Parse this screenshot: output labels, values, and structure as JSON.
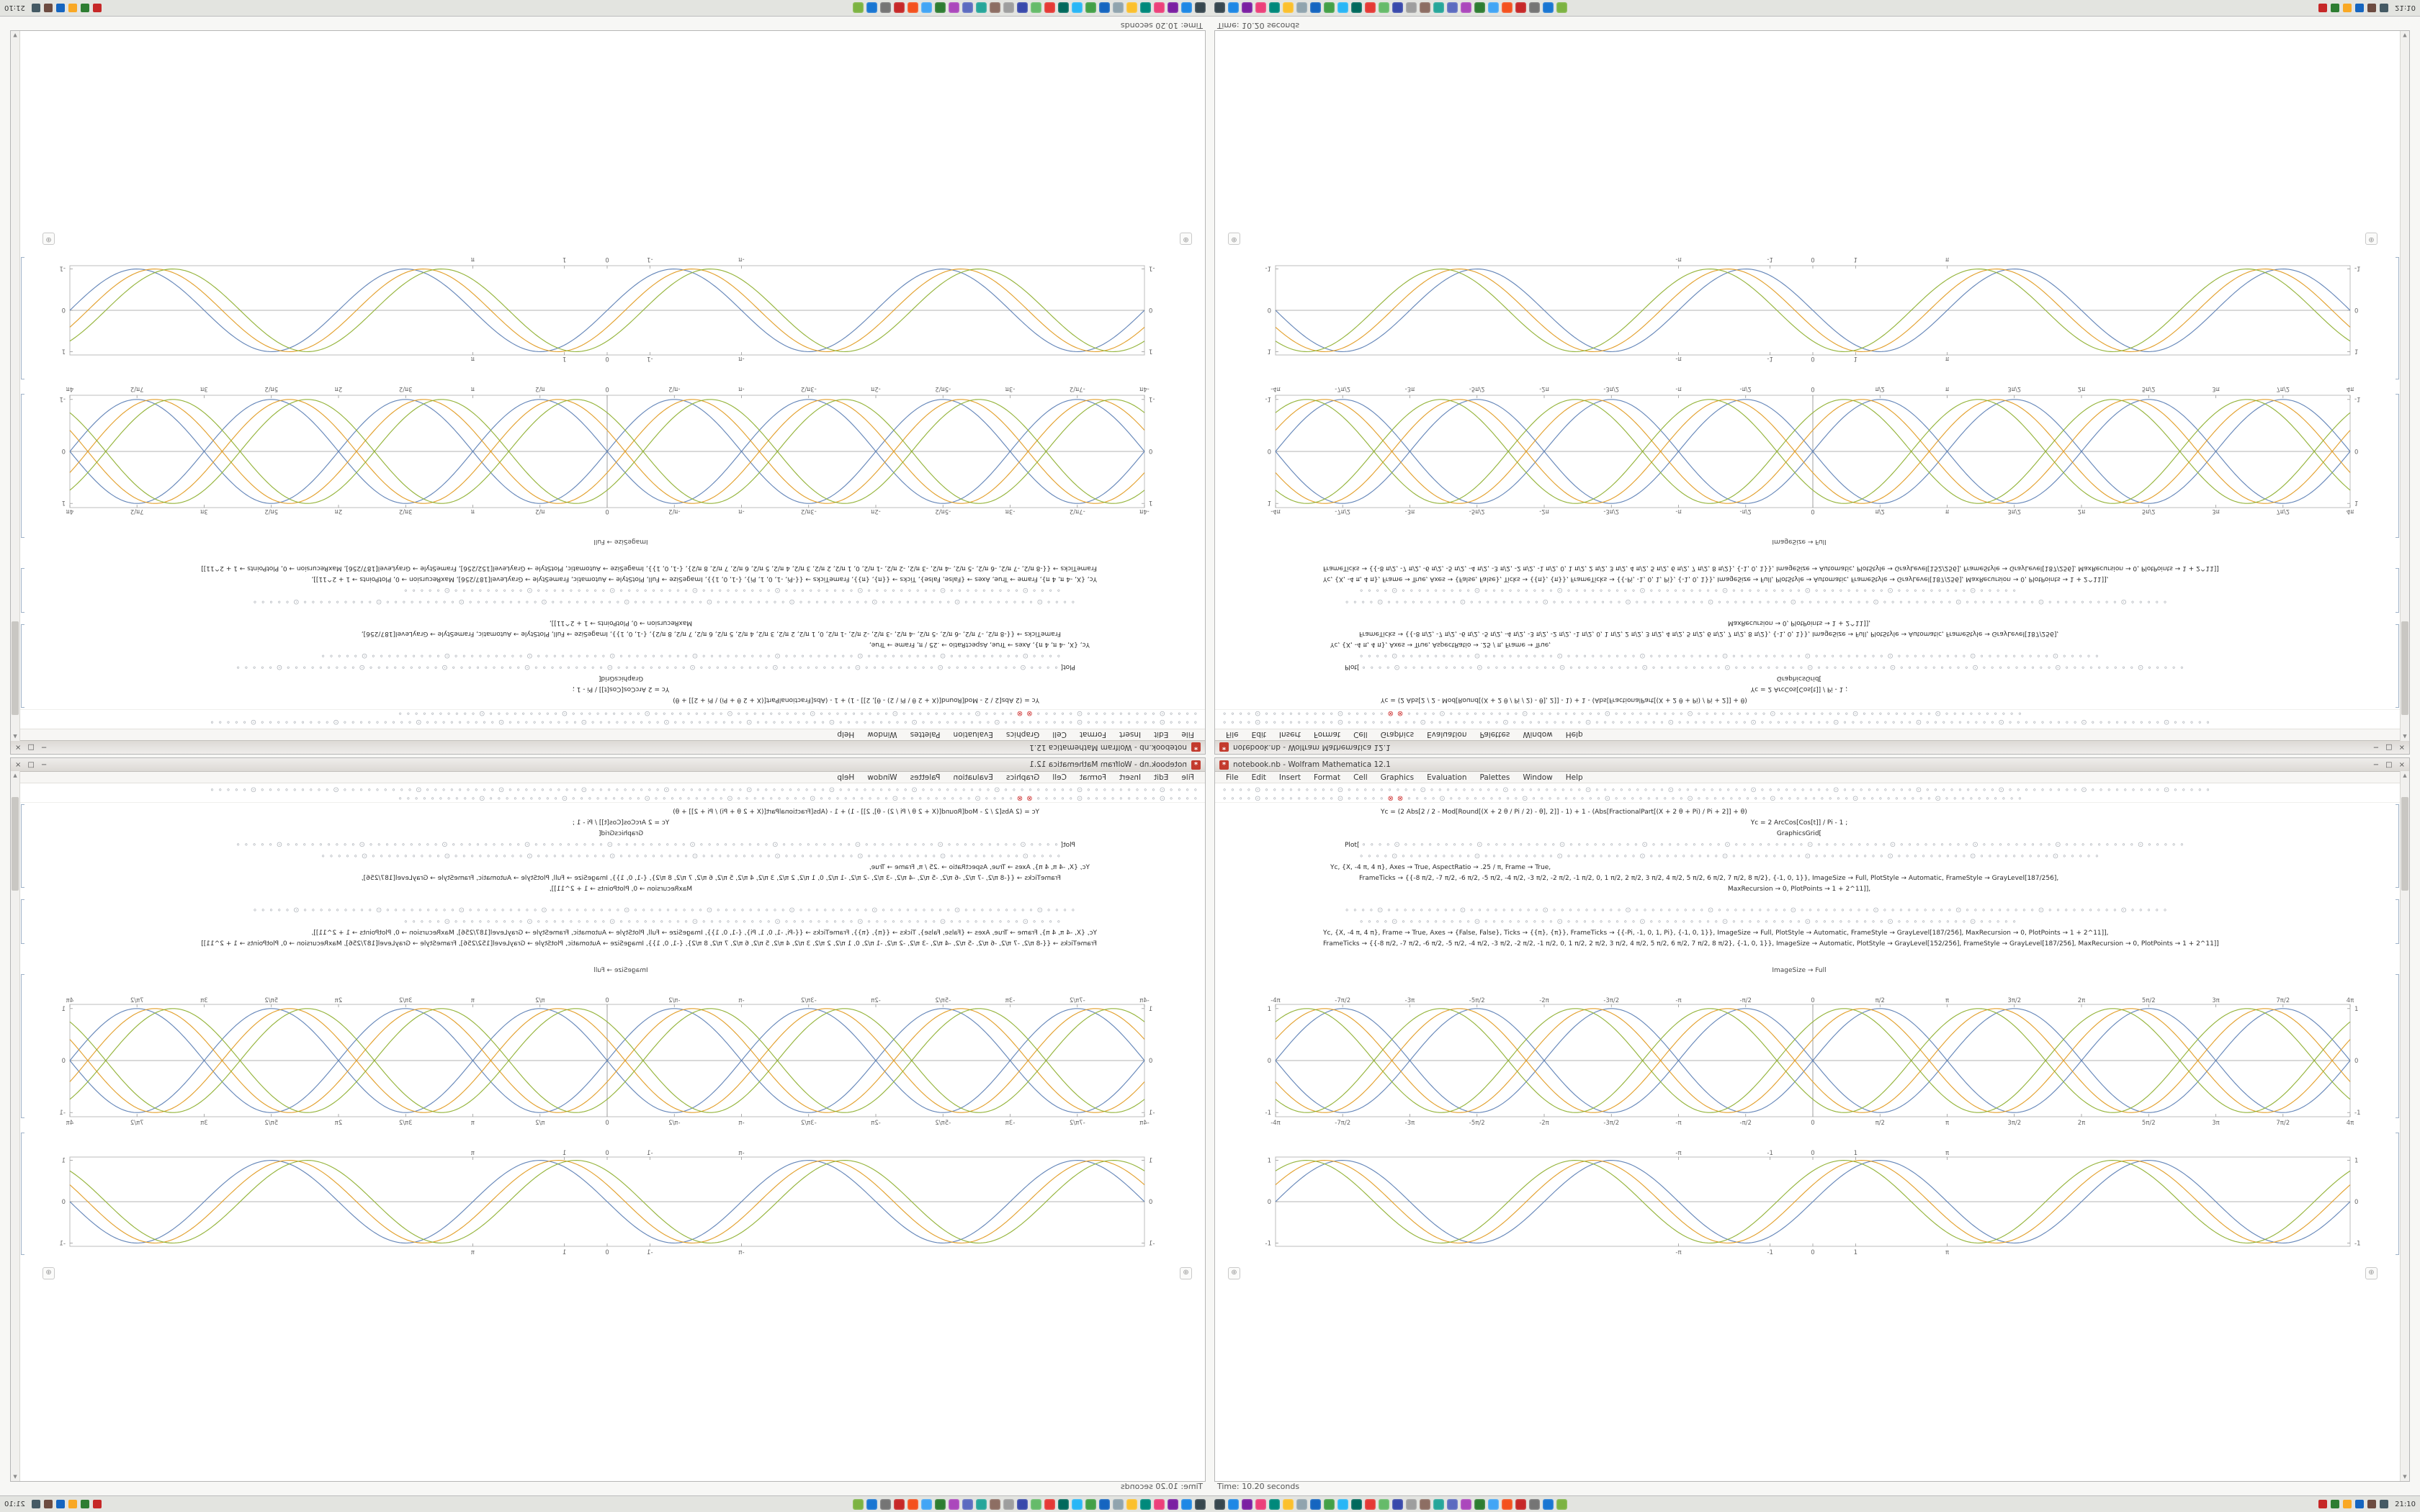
{
  "window": {
    "title": "notebook.nb - Wolfram Mathematica 12.1",
    "icon_glyph": "*",
    "controls": {
      "minimize": "−",
      "maximize": "□",
      "close": "×"
    },
    "menu": [
      "File",
      "Edit",
      "Insert",
      "Format",
      "Cell",
      "Graphics",
      "Evaluation",
      "Palettes",
      "Window",
      "Help"
    ],
    "toolbar_row1": "∘∘∘∘⊙∘∘∘∘∘∘∘∘∘⊙∘∘∘∘∘∘∘∘∘⊙∘∘∘∘∘∘∘∘∘⊙∘∘∘∘∘∘∘∘∘⊙∘∘∘∘∘∘∘∘∘⊙∘∘∘∘∘∘∘∘∘⊙∘∘∘∘∘∘∘∘∘⊙∘∘∘∘∘∘∘∘∘⊙∘∘∘∘∘∘∘∘∘⊙∘∘∘∘∘∘∘∘∘⊙∘∘∘∘∘∘∘∘∘⊙∘∘∘∘∘",
    "toolbar_row2a": "∘∘∘∘⊙∘∘∘∘∘∘∘∘∘⊙∘∘∘∘∘",
    "toolbar_alert": "⊗⊗",
    "toolbar_row2b": "∘∘∘∘⊙∘∘∘∘∘∘∘∘∘⊙∘∘∘∘∘∘∘∘∘⊙∘∘∘∘∘∘∘∘∘⊙∘∘∘∘∘∘∘∘∘⊙∘∘∘∘∘∘∘∘∘⊙∘∘∘∘∘∘∘∘∘⊙∘∘∘∘∘∘∘∘∘∘",
    "plus_glyph": "⊕",
    "scroll_up": "▲",
    "scroll_down": "▼"
  },
  "notebook": {
    "code1": {
      "line1": "Yc = (2 Abs[2 / 2 - Mod[Round[(X + 2 θ / Pi / 2) - θ], 2]] - 1) + 1 - (Abs[FractionalPart[(X + 2 θ + Pi) / Pi + 2]] + θ)",
      "line2": "Yc = 2 ArcCos[Cos[t]] / Pi - 1 ;",
      "graphics_grid": "GraphicsGrid[",
      "plot_open": "Plot[",
      "markers1": "∘∘∘∘⊙∘∘∘∘∘∘∘∘∘⊙∘∘∘∘∘∘∘∘∘⊙∘∘∘∘∘∘∘∘∘⊙∘∘∘∘∘∘∘∘∘⊙∘∘∘∘∘∘∘∘∘⊙∘∘∘∘∘∘∘∘∘⊙∘∘∘∘∘∘∘∘∘⊙∘∘∘∘∘∘∘∘∘⊙∘∘∘∘∘∘∘∘∘⊙∘∘∘∘∘",
      "markers2": "∘∘∘∘⊙∘∘∘∘∘∘∘∘∘⊙∘∘∘∘∘∘∘∘∘⊙∘∘∘∘∘∘∘∘∘⊙∘∘∘∘∘∘∘∘∘⊙∘∘∘∘∘∘∘∘∘⊙∘∘∘∘∘∘∘∘∘⊙∘∘∘∘∘∘∘∘∘⊙∘∘∘∘∘∘∘∘∘⊙∘∘∘∘∘",
      "line6": "Yc, {X, -4 π, 4 π}, Axes → True, AspectRatio → .25 / π, Frame → True,",
      "line7": "FrameTicks → {{-8 π/2, -7 π/2, -6 π/2, -5 π/2, -4 π/2, -3 π/2, -2 π/2, -1 π/2, 0, 1 π/2, 2 π/2, 3 π/2, 4 π/2, 5 π/2, 6 π/2, 7 π/2, 8 π/2}, {-1, 0, 1}}, ImageSize → Full, PlotStyle → Automatic, FrameStyle → GrayLevel[187/256],",
      "line8": "MaxRecursion → 0, PlotPoints → 1 + 2^11]],"
    },
    "code2": {
      "markers1": "∘∘∘∘⊙∘∘∘∘∘∘∘∘∘⊙∘∘∘∘∘∘∘∘∘⊙∘∘∘∘∘∘∘∘∘⊙∘∘∘∘∘∘∘∘∘⊙∘∘∘∘∘∘∘∘∘⊙∘∘∘∘∘∘∘∘∘⊙∘∘∘∘∘∘∘∘∘⊙∘∘∘∘∘∘∘∘∘⊙∘∘∘∘∘∘∘∘∘⊙∘∘∘∘∘",
      "markers2": "∘∘∘∘⊙∘∘∘∘∘∘∘∘∘⊙∘∘∘∘∘∘∘∘∘⊙∘∘∘∘∘∘∘∘∘⊙∘∘∘∘∘∘∘∘∘⊙∘∘∘∘∘∘∘∘∘⊙∘∘∘∘∘∘∘∘∘⊙∘∘∘∘∘∘∘∘∘⊙∘∘∘∘∘",
      "line3": "Yc, {X, -4 π, 4 π}, Frame → True, Axes → {False, False}, Ticks → {{π}, {π}}, FrameTicks → {{-Pi, -1, 0, 1, Pi}, {-1, 0, 1}}, ImageSize → Full, PlotStyle → Automatic, FrameStyle → GrayLevel[187/256], MaxRecursion → 0, PlotPoints → 1 + 2^11]],",
      "line4": "FrameTicks → {{-8 π/2, -7 π/2, -6 π/2, -5 π/2, -4 π/2, -3 π/2, -2 π/2, -1 π/2, 0, 1 π/2, 2 π/2, 3 π/2, 4 π/2, 5 π/2, 6 π/2, 7 π/2, 8 π/2}, {-1, 0, 1}}, ImageSize → Automatic, PlotStyle → GrayLevel[152/256], FrameStyle → GrayLevel[187/256], MaxRecursion → 0, PlotPoints → 1 + 2^11]]"
    },
    "imagesize_label": "ImageSize → Full"
  },
  "status": {
    "time": "Time: 10.20 seconds"
  },
  "taskbar": {
    "app_icon_colors": [
      "#37474f",
      "#1e88e5",
      "#7b1fa2",
      "#ec407a",
      "#00897b",
      "#fbc02d",
      "#90a4ae",
      "#1565c0",
      "#43a047",
      "#29b6f6",
      "#00695c",
      "#e53935",
      "#66bb6a",
      "#3949ab",
      "#9e9e9e",
      "#8d6e63",
      "#26a69a",
      "#5c6bc0",
      "#ab47bc",
      "#2e7d32",
      "#42a5f5",
      "#f4511e",
      "#c62828",
      "#757575",
      "#1976d2",
      "#7cb342"
    ],
    "tray_icon_colors": [
      "#c62828",
      "#2e7d32",
      "#f9a825",
      "#1565c0",
      "#6d4c41",
      "#455a64"
    ],
    "clock": "21:10"
  },
  "chart_data": [
    {
      "type": "line",
      "title": "",
      "x_range": [
        -12.566,
        12.566
      ],
      "y_range": [
        -1.08,
        1.08
      ],
      "frame": true,
      "frame_color": "#bcbcbc",
      "axis_lines": {
        "x0": true,
        "y0": true
      },
      "x_ticks": [
        {
          "v": -12.566,
          "label": "-4π"
        },
        {
          "v": -10.996,
          "label": "-7π/2"
        },
        {
          "v": -9.425,
          "label": "-3π"
        },
        {
          "v": -7.854,
          "label": "-5π/2"
        },
        {
          "v": -6.283,
          "label": "-2π"
        },
        {
          "v": -4.712,
          "label": "-3π/2"
        },
        {
          "v": -3.142,
          "label": "-π"
        },
        {
          "v": -1.571,
          "label": "-π/2"
        },
        {
          "v": 0,
          "label": "0"
        },
        {
          "v": 1.571,
          "label": "π/2"
        },
        {
          "v": 3.142,
          "label": "π"
        },
        {
          "v": 4.712,
          "label": "3π/2"
        },
        {
          "v": 6.283,
          "label": "2π"
        },
        {
          "v": 7.854,
          "label": "5π/2"
        },
        {
          "v": 9.425,
          "label": "3π"
        },
        {
          "v": 10.996,
          "label": "7π/2"
        },
        {
          "v": 12.566,
          "label": "4π"
        }
      ],
      "y_ticks": [
        {
          "v": -1,
          "label": "-1"
        },
        {
          "v": 0,
          "label": "0"
        },
        {
          "v": 1,
          "label": "1"
        }
      ],
      "series": [
        {
          "name": "sin(x)",
          "color": "#5E81B5",
          "waveform": "sine",
          "omega": 1,
          "phase": 0,
          "sign": 1
        },
        {
          "name": "-sin(x)",
          "color": "#5E81B5",
          "waveform": "sine",
          "omega": 1,
          "phase": 0,
          "sign": -1
        },
        {
          "name": "sin(x+0.42)",
          "color": "#E19C24",
          "waveform": "sine",
          "omega": 1,
          "phase": 0.42,
          "sign": 1
        },
        {
          "name": "-sin(x+0.42)",
          "color": "#E19C24",
          "waveform": "sine",
          "omega": 1,
          "phase": 0.42,
          "sign": -1
        },
        {
          "name": "sin(x+0.84)",
          "color": "#8FB032",
          "waveform": "sine",
          "omega": 1,
          "phase": 0.84,
          "sign": 1
        },
        {
          "name": "-sin(x+0.84)",
          "color": "#8FB032",
          "waveform": "sine",
          "omega": 1,
          "phase": 0.84,
          "sign": -1
        }
      ]
    },
    {
      "type": "line",
      "title": "",
      "x_range": [
        -12.566,
        12.566
      ],
      "y_range": [
        -1.08,
        1.08
      ],
      "frame": true,
      "frame_color": "#bcbcbc",
      "axis_lines": {
        "x0": false,
        "y0": true
      },
      "x_ticks": [
        {
          "v": -3.142,
          "label": "-π"
        },
        {
          "v": -1,
          "label": "-1"
        },
        {
          "v": 0,
          "label": "0"
        },
        {
          "v": 1,
          "label": "1"
        },
        {
          "v": 3.142,
          "label": "π"
        }
      ],
      "y_ticks": [
        {
          "v": -1,
          "label": "-1"
        },
        {
          "v": 0,
          "label": "0"
        },
        {
          "v": 1,
          "label": "1"
        }
      ],
      "series": [
        {
          "name": "sin(x)",
          "color": "#5E81B5",
          "waveform": "sine",
          "omega": 1,
          "phase": 0,
          "sign": 1
        },
        {
          "name": "sin(x+0.42)",
          "color": "#E19C24",
          "waveform": "sine",
          "omega": 1,
          "phase": 0.42,
          "sign": 1
        },
        {
          "name": "sin(x+0.84)",
          "color": "#8FB032",
          "waveform": "sine",
          "omega": 1,
          "phase": 0.84,
          "sign": 1
        }
      ]
    }
  ]
}
